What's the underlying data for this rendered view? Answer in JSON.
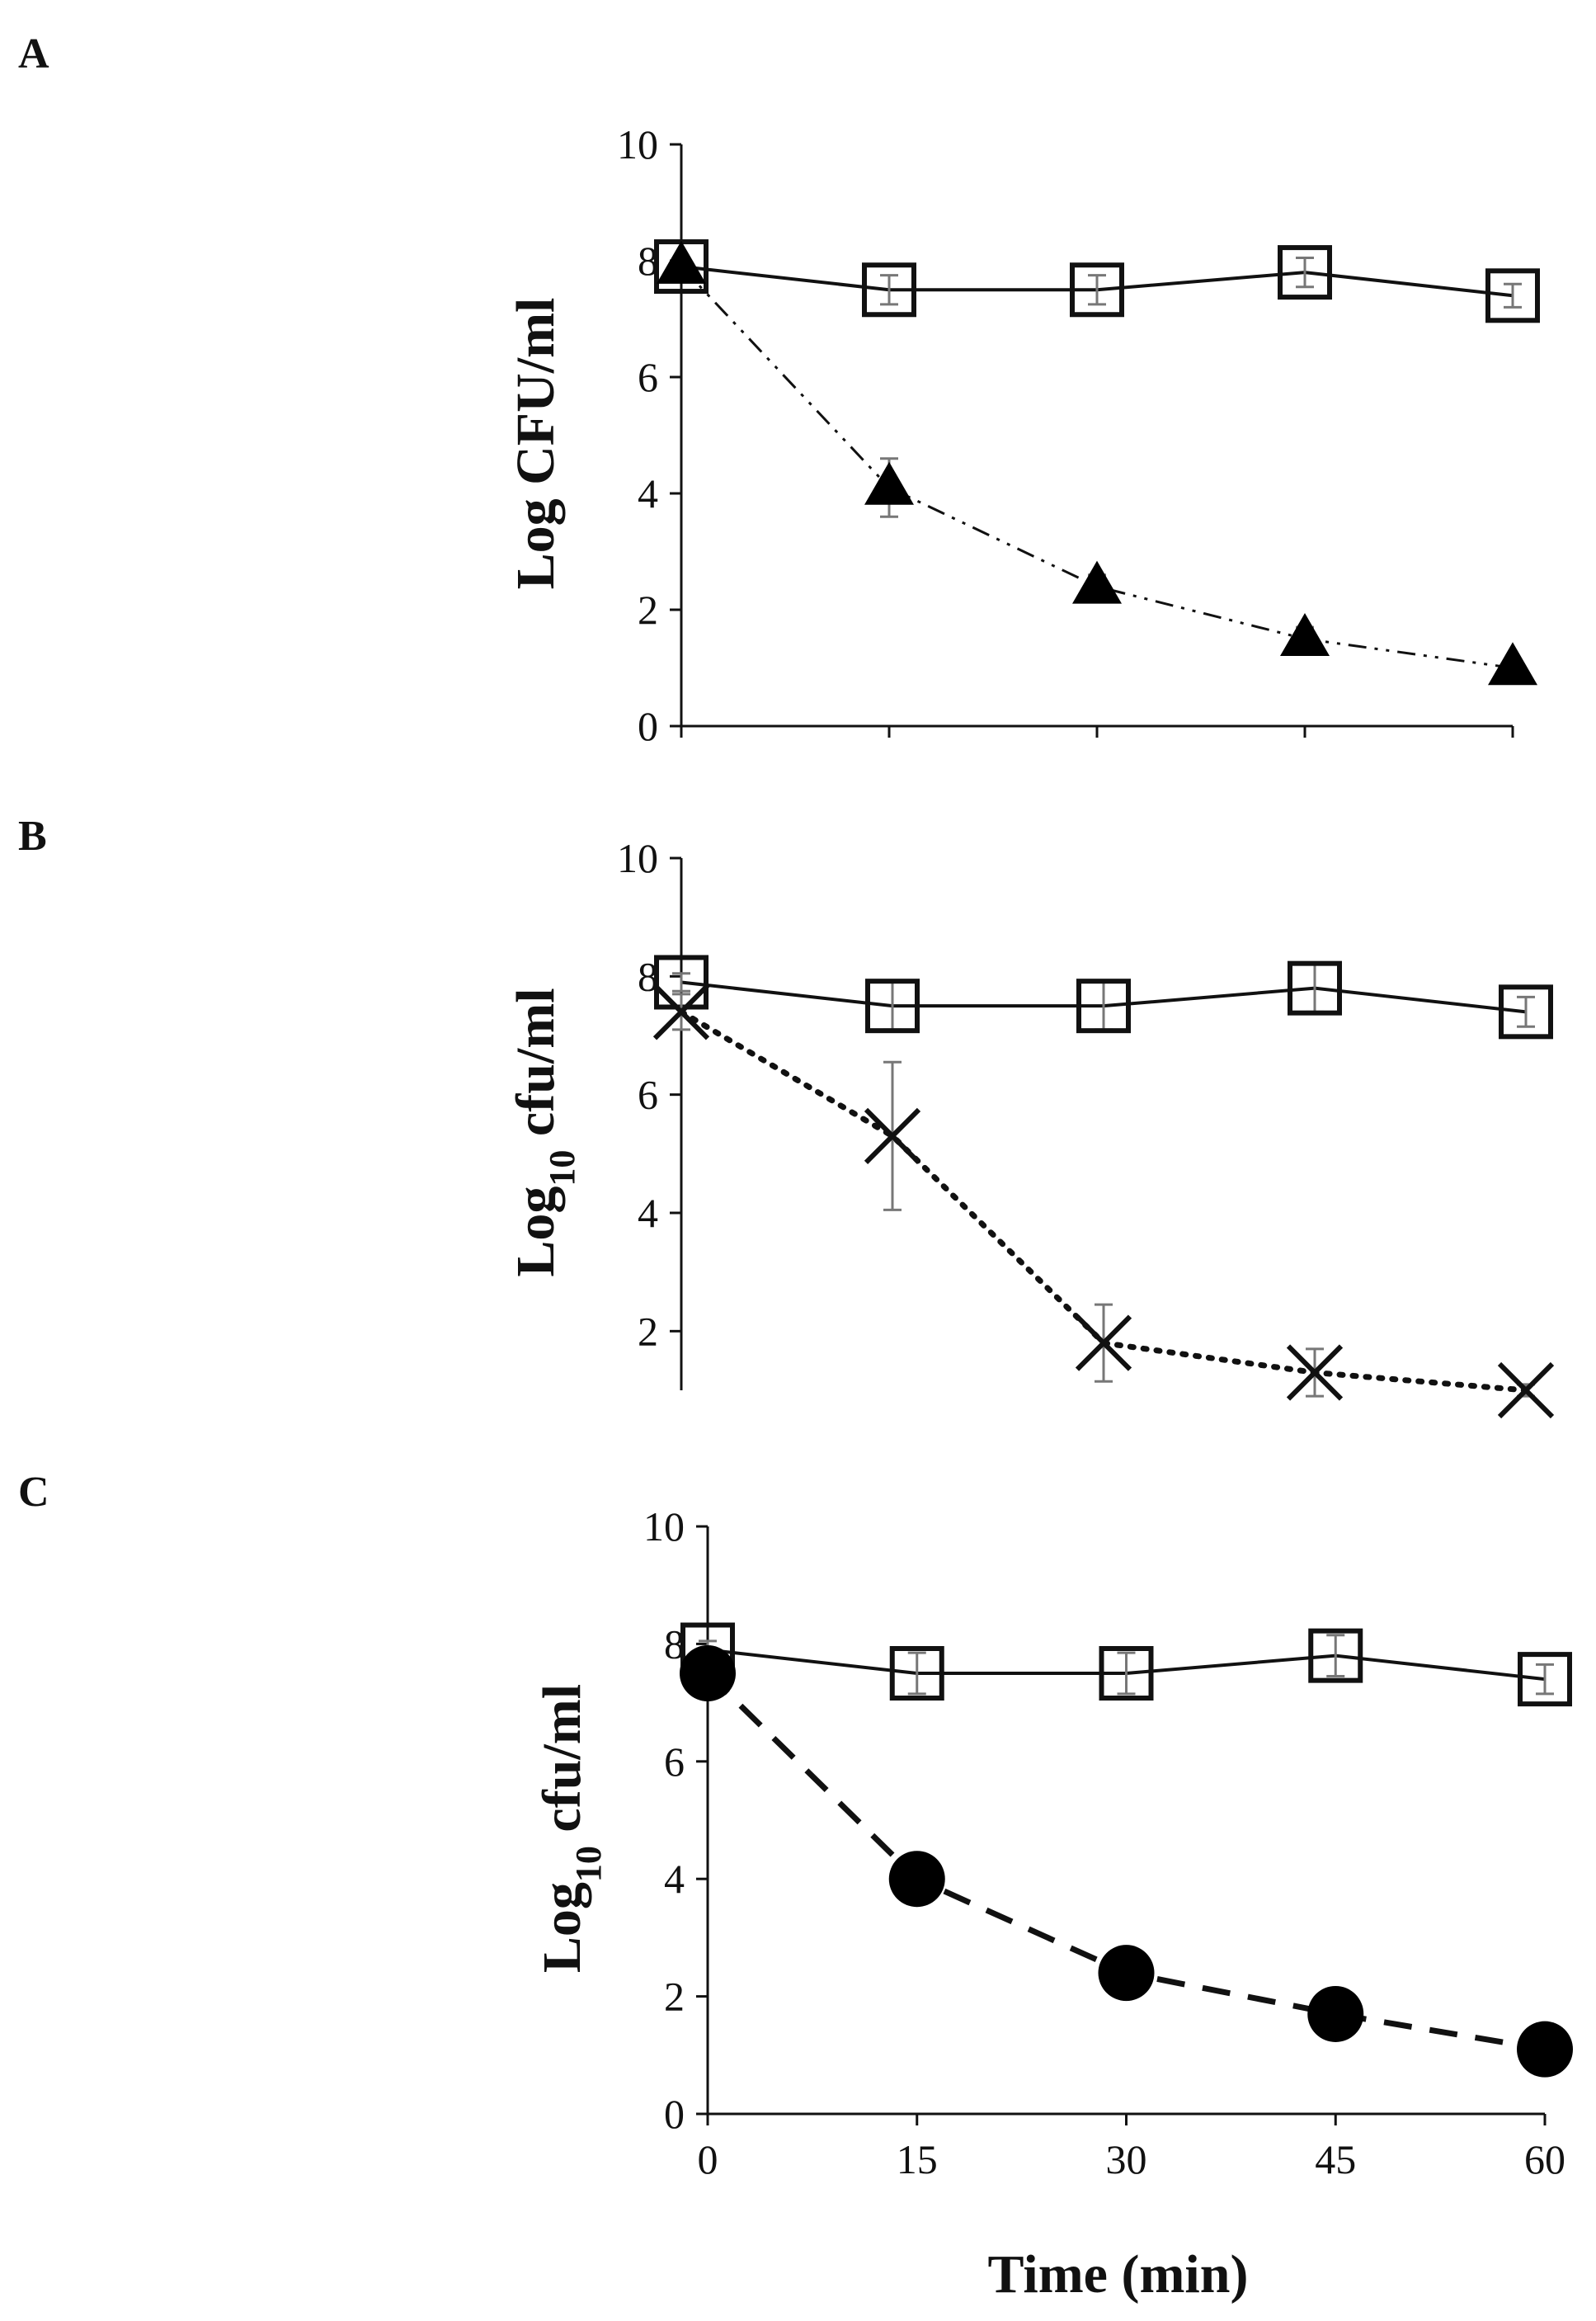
{
  "chart_data": [
    {
      "type": "line",
      "panel_label": "A",
      "ylabel": "Log CFU/ml",
      "ylabel_sub": "",
      "x": [
        0,
        15,
        30,
        45,
        60
      ],
      "xticks": [],
      "xlim": [
        0,
        60
      ],
      "ylim": [
        0,
        10
      ],
      "yticks": [
        "0",
        "2",
        "4",
        "6",
        "8",
        "10"
      ],
      "grid": false,
      "series": [
        {
          "marker": "open-square",
          "line": "solid",
          "values": [
            7.9,
            7.5,
            7.5,
            7.8,
            7.4
          ],
          "errors": [
            0.15,
            0.25,
            0.25,
            0.25,
            0.2
          ]
        },
        {
          "marker": "filled-triangle",
          "line": "dash-dot-dot",
          "values": [
            7.9,
            4.1,
            2.4,
            1.5,
            1.0
          ],
          "errors": [
            0.15,
            0.5,
            0.2,
            0.2,
            0.1
          ]
        }
      ]
    },
    {
      "type": "line",
      "panel_label": "B",
      "ylabel": "Log",
      "ylabel_sub": "10",
      "ylabel_tail": " cfu/ml",
      "x": [
        0,
        15,
        30,
        45,
        60
      ],
      "xticks": [],
      "xlim": [
        0,
        60
      ],
      "ylim": [
        1,
        10
      ],
      "yticks": [
        "2",
        "4",
        "6",
        "8",
        "10"
      ],
      "grid": false,
      "series": [
        {
          "marker": "open-square",
          "line": "solid",
          "values": [
            7.9,
            7.5,
            7.5,
            7.8,
            7.4
          ],
          "errors": [
            0.15,
            0.4,
            0.4,
            0.4,
            0.25
          ]
        },
        {
          "marker": "x",
          "line": "dotted",
          "values": [
            7.4,
            5.3,
            1.8,
            1.3,
            1.0
          ],
          "errors": [
            0.3,
            1.25,
            0.65,
            0.4,
            0.1
          ]
        }
      ]
    },
    {
      "type": "line",
      "panel_label": "C",
      "ylabel": "Log",
      "ylabel_sub": "10",
      "ylabel_tail": " cfu/ml",
      "xlabel": "Time (min)",
      "x": [
        0,
        15,
        30,
        45,
        60
      ],
      "xticks": [
        "0",
        "15",
        "30",
        "45",
        "60"
      ],
      "xlim": [
        0,
        60
      ],
      "ylim": [
        0,
        10
      ],
      "yticks": [
        "0",
        "2",
        "4",
        "6",
        "8",
        "10"
      ],
      "grid": false,
      "series": [
        {
          "marker": "open-square",
          "line": "solid",
          "values": [
            7.9,
            7.5,
            7.5,
            7.8,
            7.4
          ],
          "errors": [
            0.15,
            0.35,
            0.35,
            0.35,
            0.25
          ]
        },
        {
          "marker": "filled-circle",
          "line": "dashed",
          "values": [
            7.5,
            4.0,
            2.4,
            1.7,
            1.1
          ],
          "errors": [
            0,
            0,
            0,
            0,
            0
          ]
        }
      ]
    }
  ]
}
